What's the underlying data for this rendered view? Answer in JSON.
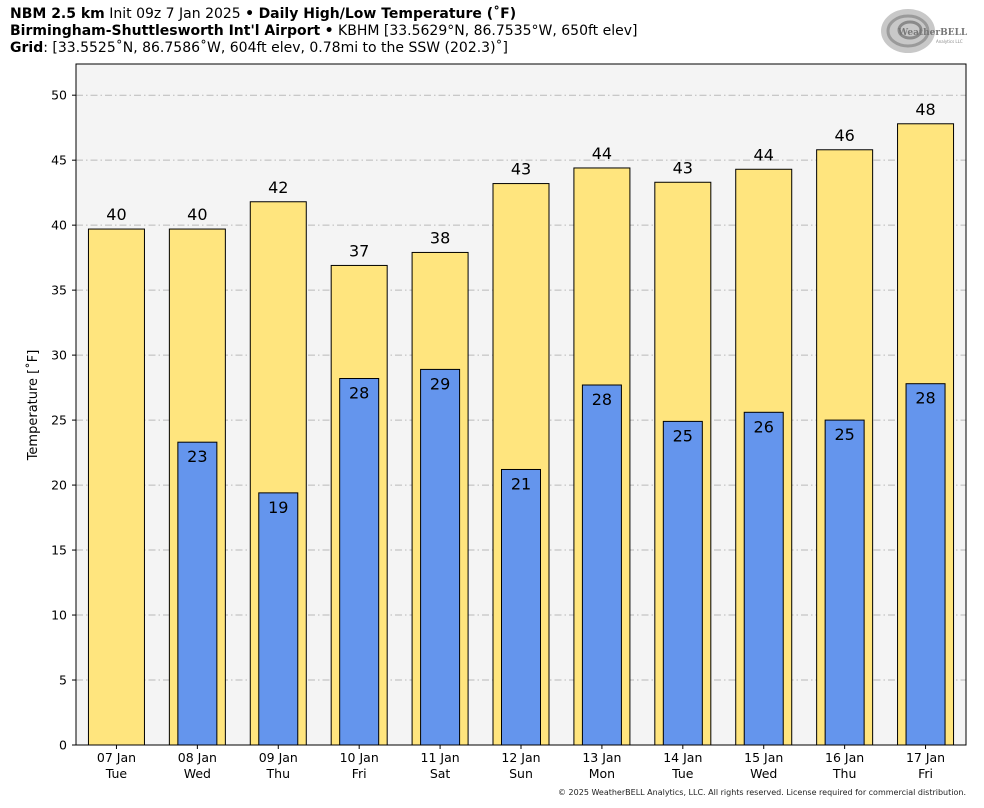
{
  "header": {
    "model": "NBM 2.5 km",
    "init": "Init 09z 7 Jan 2025",
    "bullet": "•",
    "product": "Daily High/Low Temperature (˚F)",
    "station_name": "Birmingham-Shuttlesworth Int'l Airport",
    "station_info": "KBHM [33.5629°N, 86.7535°W, 650ft elev]",
    "grid_label": "Grid",
    "grid_info": ": [33.5525˚N, 86.7586˚W, 604ft elev, 0.78mi to the SSW (202.3)˚]"
  },
  "logo": {
    "text_main": "WeatherBELL",
    "text_sub": "Analytics LLC"
  },
  "footer": "© 2025 WeatherBELL Analytics, LLC. All rights reserved. License required for commercial distribution.",
  "colors": {
    "high": "#ffe57e",
    "low": "#6495ed",
    "plot_bg": "#f4f4f4",
    "grid": "#b9b9b9"
  },
  "chart_data": {
    "type": "bar",
    "title": "Daily High/Low Temperature (˚F)",
    "ylabel": "Temperature [˚F]",
    "ylim": [
      0,
      50
    ],
    "yticks": [
      0,
      5,
      10,
      15,
      20,
      25,
      30,
      35,
      40,
      45,
      50
    ],
    "grid": true,
    "categories": [
      [
        "07 Jan",
        "Tue"
      ],
      [
        "08 Jan",
        "Wed"
      ],
      [
        "09 Jan",
        "Thu"
      ],
      [
        "10 Jan",
        "Fri"
      ],
      [
        "11 Jan",
        "Sat"
      ],
      [
        "12 Jan",
        "Sun"
      ],
      [
        "13 Jan",
        "Mon"
      ],
      [
        "14 Jan",
        "Tue"
      ],
      [
        "15 Jan",
        "Wed"
      ],
      [
        "16 Jan",
        "Thu"
      ],
      [
        "17 Jan",
        "Fri"
      ]
    ],
    "series": [
      {
        "name": "High",
        "color": "#ffe57e",
        "values": [
          39.7,
          39.7,
          41.8,
          36.9,
          37.9,
          43.2,
          44.4,
          43.3,
          44.3,
          45.8,
          47.8
        ],
        "labels": [
          "40",
          "40",
          "42",
          "37",
          "38",
          "43",
          "44",
          "43",
          "44",
          "46",
          "48"
        ]
      },
      {
        "name": "Low",
        "color": "#6495ed",
        "values": [
          null,
          23.3,
          19.4,
          28.2,
          28.9,
          21.2,
          27.7,
          24.9,
          25.6,
          25.0,
          27.8
        ],
        "labels": [
          "",
          "23",
          "19",
          "28",
          "29",
          "21",
          "28",
          "25",
          "26",
          "25",
          "28"
        ]
      }
    ]
  }
}
